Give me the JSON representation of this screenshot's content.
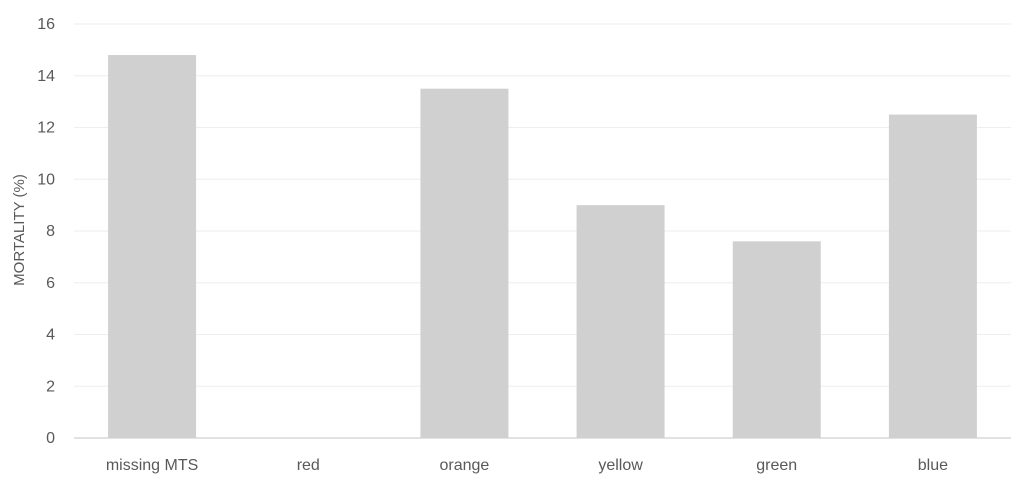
{
  "chart_data": {
    "type": "bar",
    "title": "",
    "xlabel": "",
    "ylabel": "MORTALITY (%)",
    "categories": [
      "missing MTS",
      "red",
      "orange",
      "yellow",
      "green",
      "blue"
    ],
    "values": [
      14.8,
      0,
      13.5,
      9.0,
      7.6,
      12.5
    ],
    "ylim": [
      0,
      16
    ],
    "yticks": [
      0,
      2,
      4,
      6,
      8,
      10,
      12,
      14,
      16
    ],
    "grid": true,
    "legend": "none",
    "colors": {
      "bar": "#d0d0d0",
      "grid": "#eeeeee",
      "axis": "#d0d0d0",
      "text": "#595959"
    }
  }
}
